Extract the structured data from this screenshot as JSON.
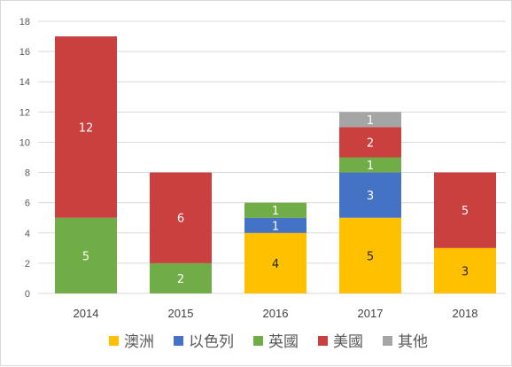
{
  "chart_data": {
    "type": "bar",
    "stacked": true,
    "categories": [
      "2014",
      "2015",
      "2016",
      "2017",
      "2018"
    ],
    "series": [
      {
        "name": "澳洲",
        "color": "#FFC000",
        "values": [
          0,
          0,
          4,
          5,
          3
        ]
      },
      {
        "name": "以色列",
        "color": "#4472C4",
        "values": [
          0,
          0,
          1,
          3,
          0
        ]
      },
      {
        "name": "英國",
        "color": "#70AD47",
        "values": [
          5,
          2,
          1,
          1,
          0
        ]
      },
      {
        "name": "美國",
        "color": "#C9403F",
        "values": [
          12,
          6,
          0,
          2,
          5
        ]
      },
      {
        "name": "其他",
        "color": "#A5A5A5",
        "values": [
          0,
          0,
          0,
          1,
          0
        ]
      }
    ],
    "ylim": [
      0,
      18
    ],
    "yticks": [
      0,
      2,
      4,
      6,
      8,
      10,
      12,
      14,
      16,
      18
    ],
    "grid": true,
    "legend": "bottom",
    "title": "",
    "xlabel": "",
    "ylabel": ""
  }
}
